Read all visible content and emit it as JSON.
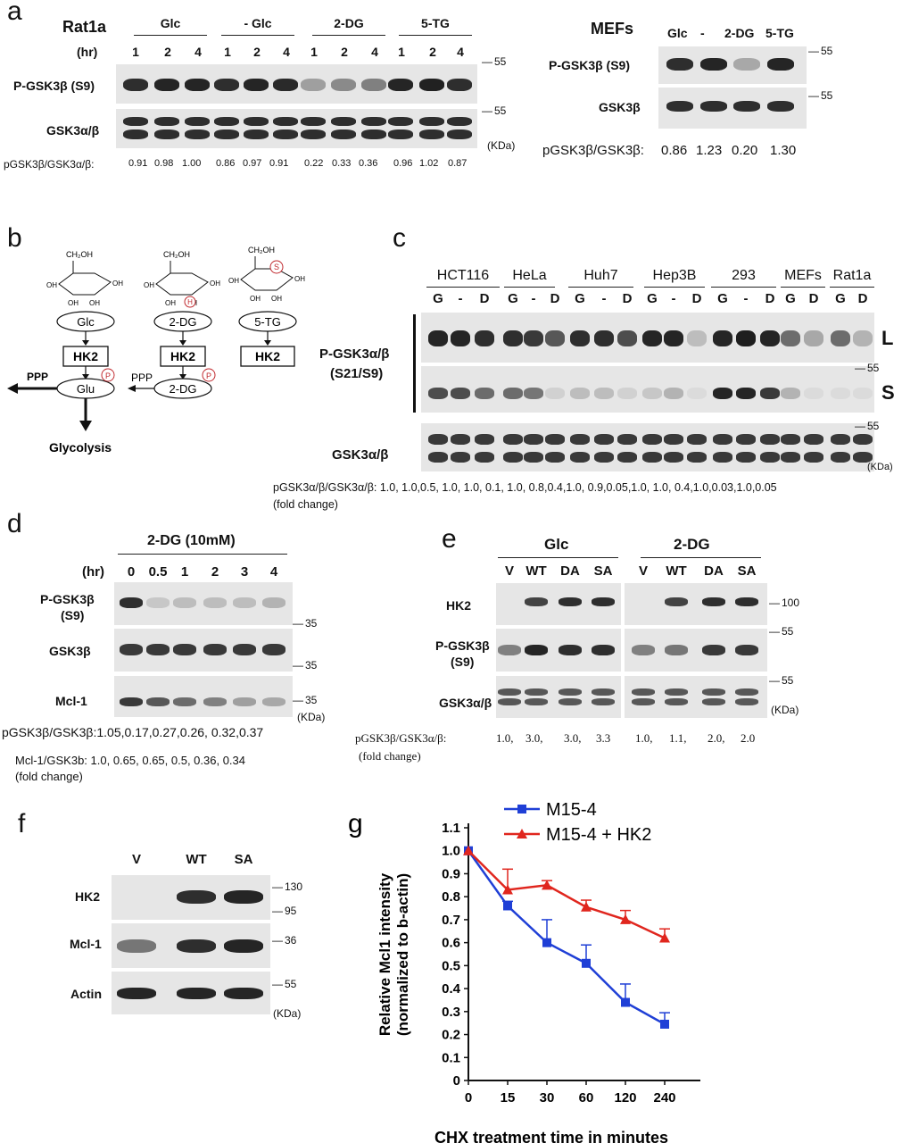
{
  "panels": {
    "a": {
      "letter": "a",
      "rat1a": {
        "cell_line": "Rat1a",
        "time_label": "(hr)",
        "groups": [
          "Glc",
          "- Glc",
          "2-DG",
          "5-TG"
        ],
        "times": [
          "1",
          "2",
          "4",
          "1",
          "2",
          "4",
          "1",
          "2",
          "4",
          "1",
          "2",
          "4"
        ],
        "row1_label": "P-GSK3β (S9)",
        "row2_label": "GSK3α/β",
        "mw1": "55",
        "mw2": "55",
        "unit": "(KDa)",
        "ratio_label": "pGSK3β/GSK3α/β:",
        "ratios": [
          "0.91",
          "0.98",
          "1.00",
          "0.86",
          "0.97",
          "0.91",
          "0.22",
          "0.33",
          "0.36",
          "0.96",
          "1.02",
          "0.87"
        ]
      },
      "mefs": {
        "cell_line": "MEFs",
        "lanes": [
          "Glc",
          "-",
          "2-DG",
          "5-TG"
        ],
        "row1_label": "P-GSK3β (S9)",
        "row2_label": "GSK3β",
        "mw1": "55",
        "mw2": "55",
        "ratio_label": "pGSK3β/GSK3β:",
        "ratios": [
          "0.86",
          "1.23",
          "0.20",
          "1.30"
        ]
      }
    },
    "b": {
      "letter": "b",
      "sugars": [
        "Glc",
        "2-DG",
        "5-TG"
      ],
      "enzyme": "HK2",
      "products": [
        "Glu",
        "2-DG"
      ],
      "ppp": "PPP",
      "glycolysis": "Glycolysis",
      "ch2oh": "CH₂OH",
      "oh": "OH",
      "p": "P",
      "s": "S",
      "h": "H"
    },
    "c": {
      "letter": "c",
      "cell_lines": [
        "HCT116",
        "HeLa",
        "Huh7",
        "Hep3B",
        "293",
        "MEFs",
        "Rat1a"
      ],
      "lanes": [
        "G",
        "-",
        "D",
        "G",
        "-",
        "D",
        "G",
        "-",
        "D",
        "G",
        "-",
        "D",
        "G",
        "-",
        "D",
        "G",
        "D",
        "G",
        "D"
      ],
      "row1_label": "P-GSK3α/β",
      "row1_sub": "(S21/S9)",
      "long": "L",
      "short": "S",
      "row2_label": "GSK3α/β",
      "mw1": "55",
      "mw2": "55",
      "unit": "(KDa)",
      "ratio_text": "pGSK3α/β/GSK3α/β: 1.0, 1.0,0.5, 1.0, 1.0, 0.1, 1.0, 0.8,0.4,1.0, 0.9,0.05,1.0, 1.0, 0.4,1.0,0.03,1.0,0.05",
      "fold": "(fold change)"
    },
    "d": {
      "letter": "d",
      "treatment": "2-DG (10mM)",
      "time_label": "(hr)",
      "times": [
        "0",
        "0.5",
        "1",
        "2",
        "3",
        "4"
      ],
      "rows": [
        "P-GSK3β",
        "(S9)",
        "GSK3β",
        "Mcl-1"
      ],
      "mw": [
        "35",
        "35",
        "35"
      ],
      "unit": "(KDa)",
      "ratio1": "pGSK3β/GSK3β:1.05,0.17,0.27,0.26, 0.32,0.37",
      "ratio2": "Mcl-1/GSK3b: 1.0, 0.65, 0.65, 0.5, 0.36, 0.34",
      "fold": "(fold change)"
    },
    "e": {
      "letter": "e",
      "groups": [
        "Glc",
        "2-DG"
      ],
      "lanes": [
        "V",
        "WT",
        "DA",
        "SA",
        "V",
        "WT",
        "DA",
        "SA"
      ],
      "rows": [
        "HK2",
        "P-GSK3β",
        "(S9)",
        "GSK3α/β"
      ],
      "mw": [
        "100",
        "55",
        "55"
      ],
      "unit": "(KDa)",
      "ratio_label": "pGSK3β/GSK3α/β:",
      "ratios": [
        "1.0,",
        "3.0,",
        "3.0,",
        "3.3",
        "1.0,",
        "1.1,",
        "2.0,",
        "2.0"
      ],
      "fold": "(fold change)"
    },
    "f": {
      "letter": "f",
      "lanes": [
        "V",
        "WT",
        "SA"
      ],
      "rows": [
        "HK2",
        "Mcl-1",
        "Actin"
      ],
      "mw": [
        "130",
        "95",
        "36",
        "55"
      ],
      "unit": "(KDa)"
    }
  },
  "chart_data": {
    "type": "line",
    "panel_letter": "g",
    "categories": [
      "0",
      "15",
      "30",
      "60",
      "120",
      "240"
    ],
    "series": [
      {
        "name": "M15-4",
        "color": "#1f3fd6",
        "marker": "square",
        "values": [
          1.0,
          0.76,
          0.6,
          0.51,
          0.34,
          0.245
        ],
        "errors": [
          0,
          0.02,
          0.1,
          0.08,
          0.08,
          0.05
        ]
      },
      {
        "name": "M15-4 + HK2",
        "color": "#e0261e",
        "marker": "triangle",
        "values": [
          1.0,
          0.83,
          0.85,
          0.755,
          0.7,
          0.62
        ],
        "errors": [
          0,
          0.09,
          0.02,
          0.03,
          0.04,
          0.04
        ]
      }
    ],
    "xlabel": "CHX treatment time in minutes",
    "ylabel_line1": "Relative Mcl1 intensity",
    "ylabel_line2": "(normalized to b-actin)",
    "ylim": [
      0,
      1.1
    ],
    "yticks": [
      "0",
      "0.1",
      "0.2",
      "0.3",
      "0.4",
      "0.5",
      "0.6",
      "0.7",
      "0.8",
      "0.9",
      "1.0",
      "1.1"
    ],
    "legend": "top"
  }
}
